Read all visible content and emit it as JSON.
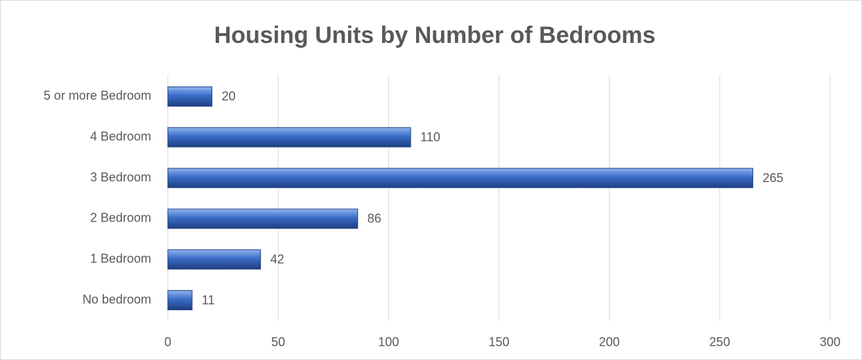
{
  "chart_data": {
    "type": "bar",
    "orientation": "horizontal",
    "title": "Housing Units by Number of Bedrooms",
    "categories": [
      "No bedroom",
      "1 Bedroom",
      "2 Bedroom",
      "3 Bedroom",
      "4 Bedroom",
      "5 or more Bedroom"
    ],
    "values": [
      11,
      42,
      86,
      265,
      110,
      20
    ],
    "color": "#3a6cc8",
    "xlim": [
      0,
      300
    ],
    "xticks": [
      0,
      50,
      100,
      150,
      200,
      250,
      300
    ],
    "grid": true
  }
}
